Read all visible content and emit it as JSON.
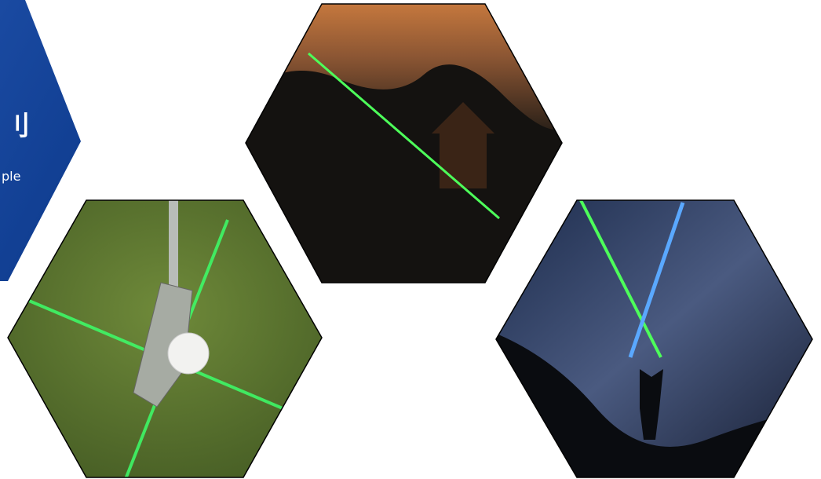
{
  "banner": {
    "title": "刂",
    "subtitle": "ple"
  }
}
